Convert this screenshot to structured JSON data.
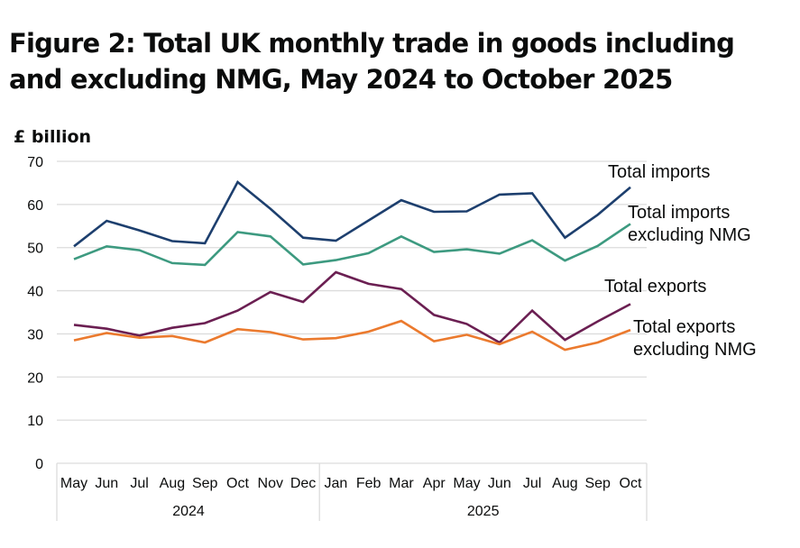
{
  "figure": {
    "title": "Figure 2: Total UK monthly trade in goods including and excluding NMG, May 2024 to October 2025",
    "unit_label": "£ billion"
  },
  "chart_data": {
    "type": "line",
    "title": "Figure 2: Total UK monthly trade in goods including and excluding NMG, May 2024 to October 2025",
    "ylabel": "£ billion",
    "xlabel": "",
    "ylim": [
      0,
      70
    ],
    "yticks": [
      0,
      10,
      20,
      30,
      40,
      50,
      60,
      70
    ],
    "grid": true,
    "legend": "direct-labels-right",
    "categories": [
      "May",
      "Jun",
      "Jul",
      "Aug",
      "Sep",
      "Oct",
      "Nov",
      "Dec",
      "Jan",
      "Feb",
      "Mar",
      "Apr",
      "May",
      "Jun",
      "Jul",
      "Aug",
      "Sep",
      "Oct"
    ],
    "year_groups": [
      {
        "label": "2024",
        "start": 0,
        "end": 7
      },
      {
        "label": "2025",
        "start": 8,
        "end": 17
      }
    ],
    "series": [
      {
        "name": "Total imports",
        "label_lines": [
          "Total  imports"
        ],
        "color": "#1d3f6e",
        "values": [
          50.3,
          56.2,
          54.0,
          51.5,
          51.0,
          65.2,
          59.0,
          52.3,
          51.6,
          56.3,
          61.0,
          58.3,
          58.4,
          62.3,
          62.6,
          52.3,
          57.6,
          64.0
        ]
      },
      {
        "name": "Total imports excluding NMG",
        "label_lines": [
          "Total imports",
          "excluding NMG"
        ],
        "color": "#3d9a80",
        "values": [
          47.3,
          50.3,
          49.4,
          46.4,
          46.0,
          53.6,
          52.6,
          46.1,
          47.1,
          48.7,
          52.6,
          49.0,
          49.6,
          48.6,
          51.7,
          47.0,
          50.4,
          55.5
        ]
      },
      {
        "name": "Total exports",
        "label_lines": [
          "Total exports"
        ],
        "color": "#6b1f52",
        "values": [
          32.1,
          31.2,
          29.6,
          31.4,
          32.5,
          35.4,
          39.7,
          37.4,
          44.3,
          41.6,
          40.4,
          34.4,
          32.3,
          28.0,
          35.4,
          28.6,
          32.9,
          36.9
        ]
      },
      {
        "name": "Total exports excluding NMG",
        "label_lines": [
          "Total exports",
          "excluding NMG"
        ],
        "color": "#eb7a2e",
        "values": [
          28.5,
          30.2,
          29.1,
          29.5,
          28.0,
          31.1,
          30.4,
          28.7,
          29.0,
          30.5,
          33.0,
          28.3,
          29.8,
          27.6,
          30.5,
          26.3,
          28.0,
          30.9
        ]
      }
    ]
  }
}
